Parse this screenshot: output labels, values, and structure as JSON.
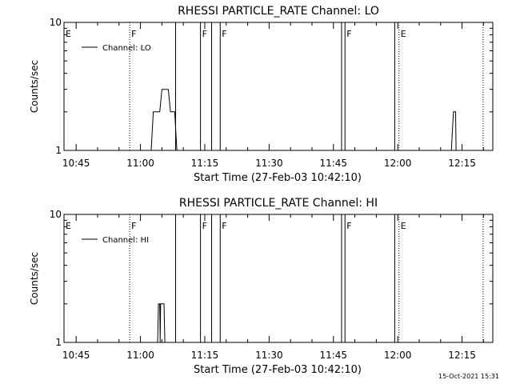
{
  "chart_data": [
    {
      "type": "line",
      "title": "RHESSI PARTICLE_RATE Channel: LO",
      "xlabel": "Start Time (27-Feb-03 10:42:10)",
      "ylabel": "Counts/sec",
      "yscale": "log",
      "ylim": [
        1,
        10
      ],
      "y_tick_labels": [
        {
          "value": 1,
          "label": "1"
        },
        {
          "value": 10,
          "label": "10"
        }
      ],
      "xlim_minutes": [
        42.17,
        142.17
      ],
      "x_tick_labels": [
        {
          "minute": 45,
          "label": "10:45"
        },
        {
          "minute": 60,
          "label": "11:00"
        },
        {
          "minute": 75,
          "label": "11:15"
        },
        {
          "minute": 90,
          "label": "11:30"
        },
        {
          "minute": 105,
          "label": "11:45"
        },
        {
          "minute": 120,
          "label": "12:00"
        },
        {
          "minute": 135,
          "label": "12:15"
        }
      ],
      "legend": {
        "position": "top-left",
        "entries": [
          "Channel: LO"
        ]
      },
      "flags": [
        {
          "label": "E",
          "minute": 42.17,
          "style": "none"
        },
        {
          "label": "F",
          "minute": 57.5,
          "style": "dotted"
        },
        {
          "label": "",
          "minute": 68.2,
          "style": "solid"
        },
        {
          "label": "F",
          "minute": 74.0,
          "style": "solid"
        },
        {
          "label": "",
          "minute": 76.6,
          "style": "solid"
        },
        {
          "label": "F",
          "minute": 78.6,
          "style": "solid"
        },
        {
          "label": "",
          "minute": 106.9,
          "style": "solid"
        },
        {
          "label": "F",
          "minute": 107.7,
          "style": "solid"
        },
        {
          "label": "",
          "minute": 119.3,
          "style": "solid"
        },
        {
          "label": "E",
          "minute": 120.3,
          "style": "dotted"
        },
        {
          "label": "",
          "minute": 139.9,
          "style": "dotted"
        }
      ],
      "series": [
        {
          "points": [
            [
              62.5,
              1
            ],
            [
              63.0,
              2
            ],
            [
              64.5,
              2
            ],
            [
              65.0,
              3
            ],
            [
              66.5,
              3
            ],
            [
              67.0,
              2
            ],
            [
              68.0,
              2
            ],
            [
              68.5,
              1
            ],
            [
              132.5,
              1
            ],
            [
              133.0,
              2
            ],
            [
              133.5,
              2
            ],
            [
              133.6,
              1
            ]
          ]
        }
      ]
    },
    {
      "type": "line",
      "title": "RHESSI PARTICLE_RATE Channel: HI",
      "xlabel": "Start Time (27-Feb-03 10:42:10)",
      "ylabel": "Counts/sec",
      "yscale": "log",
      "ylim": [
        1,
        10
      ],
      "y_tick_labels": [
        {
          "value": 1,
          "label": "1"
        },
        {
          "value": 10,
          "label": "10"
        }
      ],
      "xlim_minutes": [
        42.17,
        142.17
      ],
      "x_tick_labels": [
        {
          "minute": 45,
          "label": "10:45"
        },
        {
          "minute": 60,
          "label": "11:00"
        },
        {
          "minute": 75,
          "label": "11:15"
        },
        {
          "minute": 90,
          "label": "11:30"
        },
        {
          "minute": 105,
          "label": "11:45"
        },
        {
          "minute": 120,
          "label": "12:00"
        },
        {
          "minute": 135,
          "label": "12:15"
        }
      ],
      "legend": {
        "position": "top-left",
        "entries": [
          "Channel: HI"
        ]
      },
      "flags": [
        {
          "label": "E",
          "minute": 42.17,
          "style": "none"
        },
        {
          "label": "F",
          "minute": 57.5,
          "style": "dotted"
        },
        {
          "label": "",
          "minute": 68.2,
          "style": "solid"
        },
        {
          "label": "F",
          "minute": 74.0,
          "style": "solid"
        },
        {
          "label": "",
          "minute": 76.6,
          "style": "solid"
        },
        {
          "label": "F",
          "minute": 78.6,
          "style": "solid"
        },
        {
          "label": "",
          "minute": 106.9,
          "style": "solid"
        },
        {
          "label": "F",
          "minute": 107.7,
          "style": "solid"
        },
        {
          "label": "",
          "minute": 119.3,
          "style": "solid"
        },
        {
          "label": "E",
          "minute": 120.3,
          "style": "dotted"
        },
        {
          "label": "",
          "minute": 139.9,
          "style": "dotted"
        }
      ],
      "series": [
        {
          "points": [
            [
              64.0,
              1
            ],
            [
              64.2,
              2
            ],
            [
              64.5,
              2
            ],
            [
              64.6,
              1
            ],
            [
              64.7,
              2
            ],
            [
              65.5,
              2
            ],
            [
              65.7,
              1
            ]
          ]
        }
      ]
    }
  ],
  "footer": {
    "timestamp": "15-Oct-2021 15:31"
  }
}
